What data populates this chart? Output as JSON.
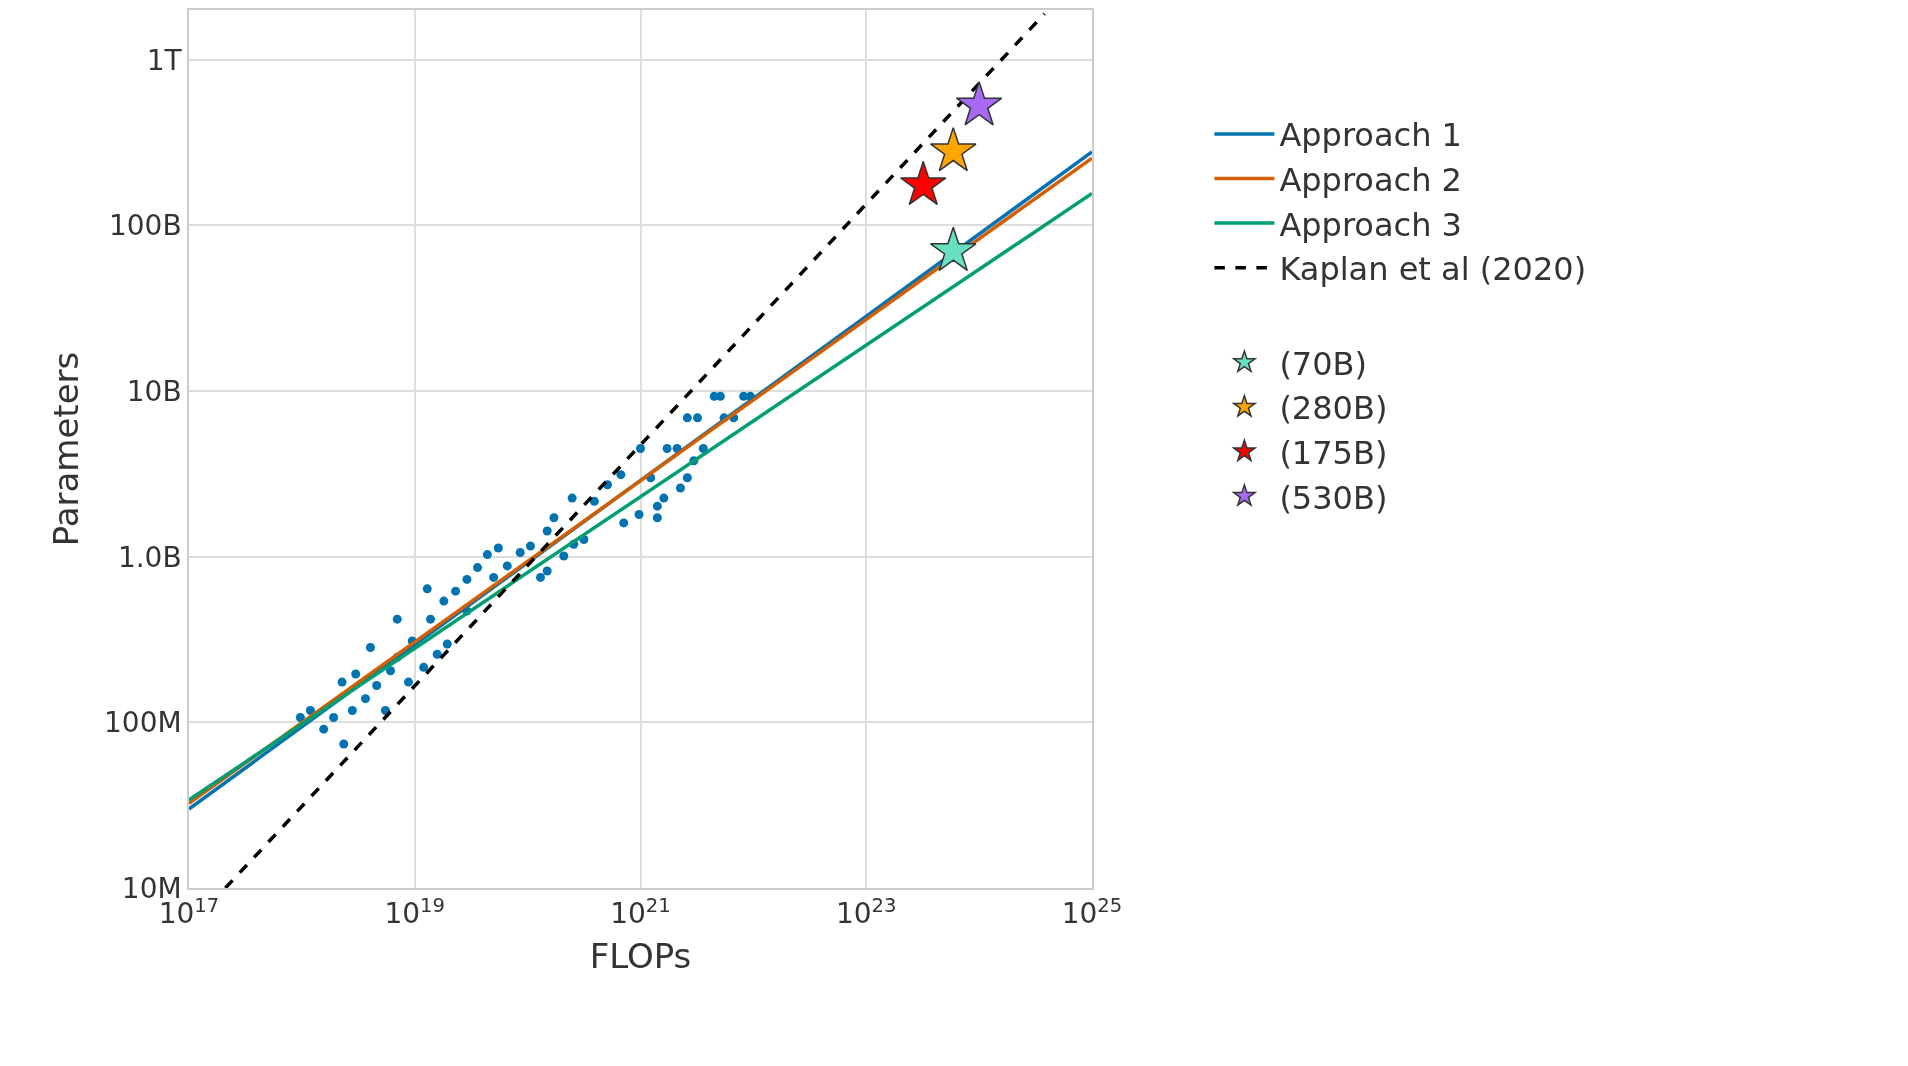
{
  "chart_data": {
    "type": "line",
    "xlabel": "FLOPs",
    "ylabel": "Parameters",
    "log": "xy",
    "grid": true,
    "legend": "right",
    "xlim": [
      1e+17,
      1e+25
    ],
    "ylim": [
      10000000.0,
      2000000000000.0
    ],
    "xticks": [
      {
        "value": 1e+17,
        "label": "10$^{17}$"
      },
      {
        "value": 1e+19,
        "label": "10$^{19}$"
      },
      {
        "value": 1e+21,
        "label": "10$^{21}$"
      },
      {
        "value": 1e+23,
        "label": "10$^{23}$"
      },
      {
        "value": 1e+25,
        "label": "10$^{25}$"
      }
    ],
    "yticks": [
      {
        "value": 10000000.0,
        "label": "10M"
      },
      {
        "value": 100000000.0,
        "label": "100M"
      },
      {
        "value": 1000000000.0,
        "label": "1.0B"
      },
      {
        "value": 10000000000.0,
        "label": "10B"
      },
      {
        "value": 100000000000.0,
        "label": "100B"
      },
      {
        "value": 1000000000000.0,
        "label": "1T"
      }
    ],
    "series": [
      {
        "type": "scatter",
        "marker": "circle",
        "color": "#0173b2",
        "x": [
          9.7e+17,
          1.19e+18,
          1.56e+18,
          1.91e+18,
          2.35e+18,
          2.8e+18,
          3e+18,
          2.27e+18,
          3.66e+18,
          4.05e+18,
          4.6e+18,
          5.5e+18,
          6.1e+18,
          7e+18,
          7e+18,
          8.8e+18,
          9.5e+18,
          1.2e+19,
          1.29e+19,
          1.38e+19,
          1.58e+19,
          1.81e+19,
          1.94e+19,
          2.3e+19,
          2.9e+19,
          3.6e+19,
          4.4e+19,
          5.5e+19,
          2.9e+19,
          5e+19,
          6.6e+19,
          8.6e+19,
          1.06e+20,
          1.3e+20,
          1.49e+20,
          1.49e+20,
          1.71e+20,
          2.09e+20,
          2.48e+20,
          2.56e+20,
          3.15e+20,
          3.9e+20,
          5.1e+20,
          6.7e+20,
          7.1e+20,
          9.7e+20,
          1e+21,
          1.23e+21,
          1.41e+21,
          1.41e+21,
          1.61e+21,
          1.72e+21,
          2.11e+21,
          2.26e+21,
          2.6e+21,
          2.97e+21,
          2.6e+21,
          3.2e+21,
          3.6e+21,
          5.5e+21,
          6.7e+21,
          4.5e+21,
          5.1e+21,
          8.2e+21,
          9.4e+21
        ],
        "values": [
          107000000.0,
          118000000.0,
          91000000.0,
          107000000.0,
          74000000.0,
          118000000.0,
          196000000.0,
          175000000.0,
          139000000.0,
          283000000.0,
          167000000.0,
          118000000.0,
          205000000.0,
          420000000.0,
          247000000.0,
          175000000.0,
          310000000.0,
          215000000.0,
          640000000.0,
          420000000.0,
          258000000.0,
          540000000.0,
          297000000.0,
          620000000.0,
          730000000.0,
          860000000.0,
          1030000000.0,
          1130000000.0,
          470000000.0,
          750000000.0,
          880000000.0,
          1060000000.0,
          1160000000.0,
          750000000.0,
          820000000.0,
          1430000000.0,
          1720000000.0,
          1010000000.0,
          2260000000.0,
          1190000000.0,
          1270000000.0,
          2160000000.0,
          2720000000.0,
          3130000000.0,
          1600000000.0,
          1800000000.0,
          4500000000.0,
          3000000000.0,
          1720000000.0,
          2020000000.0,
          2260000000.0,
          4500000000.0,
          4500000000.0,
          2600000000.0,
          3000000000.0,
          3800000000.0,
          6900000000.0,
          6900000000.0,
          4500000000.0,
          6900000000.0,
          6900000000.0,
          9300000000.0,
          9300000000.0,
          9300000000.0,
          9300000000.0
        ]
      },
      {
        "name": "Approach 1",
        "color": "#0173b2",
        "line_style": "solid",
        "x": [
          1e+17,
          1e+25
        ],
        "values": [
          30000000.0,
          278000000000.0
        ]
      },
      {
        "name": "Approach 2",
        "color": "#d55e00",
        "line_style": "solid",
        "x": [
          1e+17,
          1e+25
        ],
        "values": [
          32500000.0,
          255000000000.0
        ]
      },
      {
        "name": "Approach 3",
        "color": "#029e73",
        "line_style": "solid",
        "x": [
          1e+17,
          1e+25
        ],
        "values": [
          34000000.0,
          156000000000.0
        ]
      },
      {
        "name": "Kaplan et al (2020)",
        "color": "#000000",
        "line_style": "dashed",
        "x": [
          2.1e+17,
          3.8e+24
        ],
        "values": [
          10000000.0,
          1900000000000.0
        ]
      },
      {
        "type": "scatter",
        "marker": "star",
        "name": "(70B)",
        "color": "#66e0c0",
        "x": [
          5.9e+23
        ],
        "values": [
          70000000000.0
        ]
      },
      {
        "type": "scatter",
        "marker": "star",
        "name": "(280B)",
        "color": "#ffa500",
        "x": [
          5.9e+23
        ],
        "values": [
          280000000000.0
        ]
      },
      {
        "type": "scatter",
        "marker": "star",
        "name": "(175B)",
        "color": "#ff0000",
        "x": [
          3.2e+23
        ],
        "values": [
          175000000000.0
        ]
      },
      {
        "type": "scatter",
        "marker": "star",
        "name": "(530B)",
        "color": "#a66bf0",
        "x": [
          1e+24
        ],
        "values": [
          530000000000.0
        ]
      }
    ]
  }
}
